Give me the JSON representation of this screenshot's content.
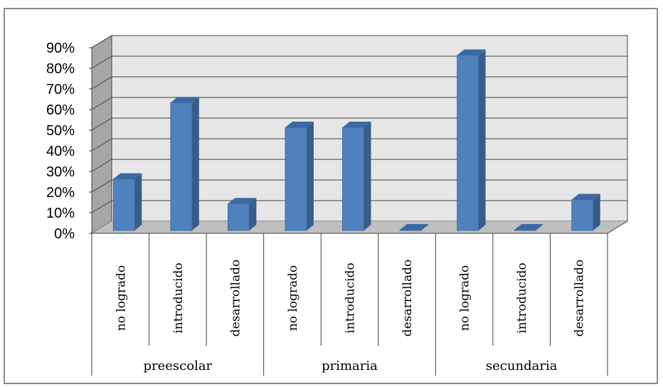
{
  "chart_data": {
    "type": "bar",
    "style": "3d-column",
    "groups": [
      {
        "name": "preescolar",
        "categories": [
          "no logrado",
          "introducido",
          "desarrollado"
        ],
        "values": [
          25,
          62,
          13
        ]
      },
      {
        "name": "primaria",
        "categories": [
          "no logrado",
          "introducido",
          "desarrollado"
        ],
        "values": [
          50,
          50,
          0
        ]
      },
      {
        "name": "secundaria",
        "categories": [
          "no logrado",
          "introducido",
          "desarrollado"
        ],
        "values": [
          85,
          0,
          15
        ]
      }
    ],
    "ylim": [
      0,
      90
    ],
    "yticks": [
      "0%",
      "10%",
      "20%",
      "30%",
      "40%",
      "50%",
      "60%",
      "70%",
      "80%",
      "90%"
    ],
    "unit": "%",
    "grid": true,
    "legend": "none",
    "colors": {
      "bar_front": "#4f81bd",
      "bar_side": "#385d8a",
      "bar_top": "#3b6aa3",
      "wall": "#e6e6e6",
      "side_wall": "#a6a6a6",
      "floor": "#bfbfbf",
      "gridline": "#404040"
    }
  }
}
